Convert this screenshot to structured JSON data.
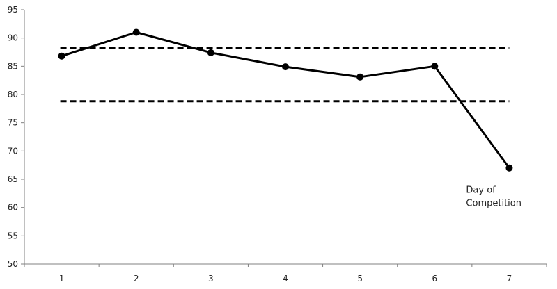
{
  "chart_data": {
    "type": "line",
    "title": "",
    "xlabel": "",
    "ylabel": "",
    "x": [
      1,
      2,
      3,
      4,
      5,
      6,
      7
    ],
    "series": [
      {
        "values": [
          86.8,
          91.0,
          87.4,
          84.9,
          83.1,
          85.0,
          67.0
        ]
      }
    ],
    "reference_lines": [
      {
        "y": 88.2,
        "style": "dashed"
      },
      {
        "y": 78.8,
        "style": "dashed"
      }
    ],
    "x_ticks": [
      "1",
      "2",
      "3",
      "4",
      "5",
      "6",
      "7"
    ],
    "y_ticks": [
      "50",
      "55",
      "60",
      "65",
      "70",
      "75",
      "80",
      "85",
      "90",
      "95"
    ],
    "ylim": [
      50,
      95
    ],
    "xlim": [
      0.5,
      7.5
    ],
    "grid": false,
    "legend": "none",
    "annotation": {
      "lines": [
        "Day of",
        "Competition"
      ],
      "x": 7,
      "y": 67.0
    },
    "colors": {
      "line": "#000000",
      "axis": "#808080",
      "text": "#222222"
    }
  }
}
